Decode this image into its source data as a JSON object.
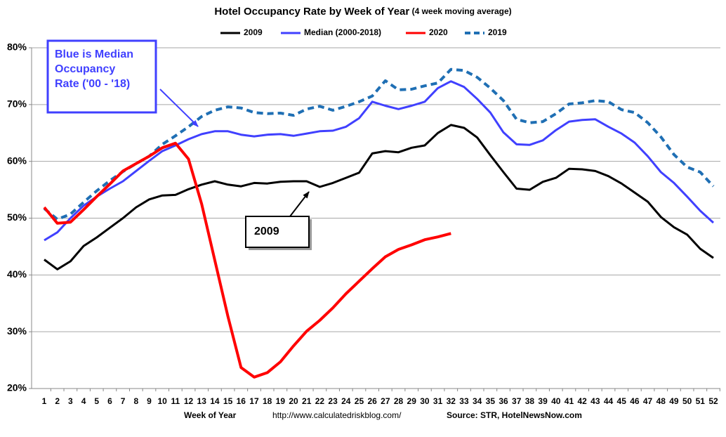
{
  "chart_data": {
    "type": "line",
    "title": "Hotel Occupancy Rate by  Week of Year",
    "subtitle": "(4 week moving average)",
    "x_label": "Week of Year",
    "url": "http://www.calculatedriskblog.com/",
    "source": "Source: STR, HotelNewsNow.com",
    "annotations": [
      "Blue is Median Occupancy Rate ('00 - '18)",
      "2009"
    ],
    "categories": [
      "1",
      "2",
      "3",
      "4",
      "5",
      "6",
      "7",
      "8",
      "9",
      "10",
      "11",
      "12",
      "13",
      "14",
      "15",
      "16",
      "17",
      "18",
      "19",
      "20",
      "21",
      "22",
      "23",
      "24",
      "25",
      "26",
      "27",
      "28",
      "29",
      "30",
      "31",
      "32",
      "33",
      "34",
      "35",
      "36",
      "37",
      "38",
      "39",
      "40",
      "41",
      "42",
      "43",
      "44",
      "45",
      "46",
      "47",
      "48",
      "49",
      "50",
      "51",
      "52"
    ],
    "ylim": [
      20,
      80
    ],
    "yticks": [
      {
        "value": 20,
        "label": "20%"
      },
      {
        "value": 30,
        "label": "30%"
      },
      {
        "value": 40,
        "label": "40%"
      },
      {
        "value": 50,
        "label": "50%"
      },
      {
        "value": 60,
        "label": "60%"
      },
      {
        "value": 70,
        "label": "70%"
      },
      {
        "value": 80,
        "label": "80%"
      }
    ],
    "grid": true,
    "legend": "top",
    "series": [
      {
        "name": "2009",
        "color": "#000000",
        "dashed": false,
        "values": [
          42.7,
          41.0,
          42.4,
          45.1,
          46.6,
          48.3,
          50.0,
          51.9,
          53.3,
          54.0,
          54.1,
          55.1,
          55.9,
          56.5,
          55.9,
          55.6,
          56.2,
          56.1,
          56.4,
          56.5,
          56.5,
          55.5,
          56.2,
          57.1,
          58.0,
          61.4,
          61.8,
          61.6,
          62.4,
          62.8,
          65.0,
          66.4,
          65.9,
          64.2,
          61.1,
          58.1,
          55.2,
          55.0,
          56.4,
          57.1,
          58.7,
          58.6,
          58.3,
          57.4,
          56.1,
          54.5,
          52.9,
          50.2,
          48.4,
          47.1,
          44.6,
          43.0
        ]
      },
      {
        "name": "Median (2000-2018)",
        "color": "#4040ff",
        "dashed": false,
        "values": [
          46.1,
          47.5,
          50.0,
          52.2,
          53.8,
          55.2,
          56.5,
          58.3,
          60.1,
          61.8,
          62.8,
          63.9,
          64.8,
          65.3,
          65.3,
          64.7,
          64.4,
          64.7,
          64.8,
          64.5,
          64.9,
          65.3,
          65.4,
          66.1,
          67.6,
          70.5,
          69.8,
          69.2,
          69.8,
          70.5,
          72.9,
          74.1,
          73.1,
          71.0,
          68.6,
          65.1,
          63.0,
          62.9,
          63.7,
          65.5,
          67.0,
          67.3,
          67.4,
          66.1,
          64.9,
          63.3,
          60.9,
          58.1,
          56.2,
          53.8,
          51.3,
          49.2
        ]
      },
      {
        "name": "2020",
        "color": "#ff0000",
        "dashed": false,
        "values": [
          51.9,
          49.1,
          49.3,
          51.5,
          53.8,
          56.0,
          58.3,
          59.6,
          60.9,
          62.4,
          63.2,
          60.4,
          52.5,
          42.6,
          32.7,
          23.7,
          22.0,
          22.8,
          24.7,
          27.5,
          30.1,
          32.0,
          34.2,
          36.7,
          38.9,
          41.1,
          43.2,
          44.5,
          45.3,
          46.2,
          46.7,
          47.3,
          null,
          null,
          null,
          null,
          null,
          null,
          null,
          null,
          null,
          null,
          null,
          null,
          null,
          null,
          null,
          null,
          null,
          null,
          null,
          null
        ]
      },
      {
        "name": "2019",
        "color": "#1f6fb4",
        "dashed": true,
        "values": [
          51.7,
          49.8,
          50.7,
          52.8,
          54.8,
          56.6,
          58.2,
          59.6,
          60.9,
          63.0,
          64.5,
          66.1,
          67.9,
          69.0,
          69.6,
          69.4,
          68.6,
          68.4,
          68.5,
          68.1,
          69.2,
          69.7,
          69.0,
          69.7,
          70.5,
          71.5,
          74.2,
          72.6,
          72.7,
          73.3,
          73.8,
          76.2,
          76.0,
          74.8,
          72.9,
          70.7,
          67.4,
          66.8,
          67.0,
          68.4,
          70.1,
          70.3,
          70.7,
          70.5,
          69.1,
          68.6,
          66.8,
          64.3,
          61.2,
          59.0,
          58.1,
          55.6
        ]
      }
    ]
  }
}
